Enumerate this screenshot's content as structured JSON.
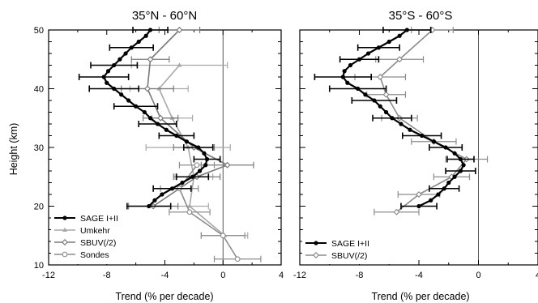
{
  "chart_data": [
    {
      "type": "line",
      "title": "35°N - 60°N",
      "xlabel": "Trend (% per decade)",
      "ylabel": "Height (km)",
      "xlim": [
        -12,
        4
      ],
      "ylim": [
        10,
        50
      ],
      "xticks": [
        "-12",
        "-8",
        "-4",
        "0",
        "4"
      ],
      "yticks": [
        "10",
        "20",
        "30",
        "40",
        "50"
      ],
      "zero_line": true,
      "grid": false,
      "legend_position": "bottom-left",
      "series": [
        {
          "name": "SAGE I+II",
          "color": "#000000",
          "marker": "circle",
          "points": [
            {
              "y": 50,
              "x": -5.0,
              "err": 1.2
            },
            {
              "y": 49,
              "x": -5.3
            },
            {
              "y": 48,
              "x": -5.8
            },
            {
              "y": 47,
              "x": -6.3,
              "err": 1.5
            },
            {
              "y": 46,
              "x": -6.7
            },
            {
              "y": 45,
              "x": -7.1
            },
            {
              "y": 44,
              "x": -7.5,
              "err": 1.6
            },
            {
              "y": 43,
              "x": -7.9
            },
            {
              "y": 42,
              "x": -8.2,
              "err": 1.7
            },
            {
              "y": 41,
              "x": -8.0
            },
            {
              "y": 40,
              "x": -7.5,
              "err": 1.7
            },
            {
              "y": 39,
              "x": -7.0
            },
            {
              "y": 38,
              "x": -6.5
            },
            {
              "y": 37,
              "x": -6.0,
              "err": 1.5
            },
            {
              "y": 36,
              "x": -5.4
            },
            {
              "y": 35,
              "x": -5.0
            },
            {
              "y": 34,
              "x": -4.5,
              "err": 1.3
            },
            {
              "y": 33,
              "x": -3.9
            },
            {
              "y": 32,
              "x": -3.2,
              "err": 1.2
            },
            {
              "y": 31,
              "x": -2.5
            },
            {
              "y": 30,
              "x": -1.7,
              "err": 1.0
            },
            {
              "y": 29,
              "x": -1.3
            },
            {
              "y": 28,
              "x": -1.1,
              "err": 0.9
            },
            {
              "y": 27,
              "x": -1.2
            },
            {
              "y": 26,
              "x": -1.6
            },
            {
              "y": 25,
              "x": -2.1,
              "err": 1.1
            },
            {
              "y": 24,
              "x": -2.8
            },
            {
              "y": 23,
              "x": -3.5,
              "err": 1.3
            },
            {
              "y": 22,
              "x": -4.2
            },
            {
              "y": 21,
              "x": -4.7
            },
            {
              "y": 20,
              "x": -5.1,
              "err": 1.5
            }
          ]
        },
        {
          "name": "Umkehr",
          "color": "#a8a8a8",
          "marker": "triangle",
          "points": [
            {
              "y": 44,
              "x": -3.0,
              "err": 3.3
            },
            {
              "y": 40,
              "x": -4.4,
              "err": 2.0
            },
            {
              "y": 35,
              "x": -3.5,
              "err": 1.4
            },
            {
              "y": 30,
              "x": -2.4,
              "err": 2.9
            },
            {
              "y": 25,
              "x": -2.0,
              "err": 1.3
            },
            {
              "y": 20,
              "x": -2.3,
              "err": 1.3
            },
            {
              "y": 15,
              "x": 0.1,
              "err": 1.6
            }
          ]
        },
        {
          "name": "SBUV(/2)",
          "color": "#7a7a7a",
          "marker": "diamond",
          "points": [
            {
              "y": 50,
              "x": -3.0,
              "err": 1.4
            },
            {
              "y": 45,
              "x": -5.0,
              "err": 1.3
            },
            {
              "y": 40,
              "x": -5.2,
              "err": 1.8
            },
            {
              "y": 35,
              "x": -4.3,
              "err": 1.2
            },
            {
              "y": 30,
              "x": -2.0,
              "err": 1.4
            },
            {
              "y": 27,
              "x": 0.3,
              "err": 1.8
            },
            {
              "y": 25,
              "x": -1.8,
              "err": 1.6
            },
            {
              "y": 20,
              "x": -4.8,
              "err": 1.7
            }
          ]
        },
        {
          "name": "Sondes",
          "color": "#8c8c8c",
          "marker": "circle-open",
          "points": [
            {
              "y": 27,
              "x": -1.8,
              "err": 1.2
            },
            {
              "y": 23,
              "x": -3.0,
              "err": 1.3
            },
            {
              "y": 19,
              "x": -2.3,
              "err": 1.4
            },
            {
              "y": 15,
              "x": 0.0,
              "err": 1.5
            },
            {
              "y": 11,
              "x": 1.0,
              "err": 1.6
            }
          ]
        }
      ]
    },
    {
      "type": "line",
      "title": "35°S - 60°S",
      "xlabel": "Trend (% per decade)",
      "ylabel": "",
      "xlim": [
        -12,
        4
      ],
      "ylim": [
        10,
        50
      ],
      "xticks": [
        "-12",
        "-8",
        "-4",
        "0",
        "4"
      ],
      "yticks": [],
      "zero_line": true,
      "grid": false,
      "legend_position": "bottom-left",
      "series": [
        {
          "name": "SAGE I+II",
          "color": "#000000",
          "marker": "circle",
          "points": [
            {
              "y": 50,
              "x": -4.8,
              "err": 1.6
            },
            {
              "y": 49,
              "x": -5.3
            },
            {
              "y": 48,
              "x": -6.0
            },
            {
              "y": 47,
              "x": -6.7,
              "err": 1.4
            },
            {
              "y": 46,
              "x": -7.4
            },
            {
              "y": 45,
              "x": -8.0,
              "err": 1.3
            },
            {
              "y": 44,
              "x": -8.6
            },
            {
              "y": 43,
              "x": -9.0
            },
            {
              "y": 42,
              "x": -9.1,
              "err": 1.9
            },
            {
              "y": 41,
              "x": -8.8
            },
            {
              "y": 40,
              "x": -8.1,
              "err": 1.9
            },
            {
              "y": 39,
              "x": -7.6
            },
            {
              "y": 38,
              "x": -7.0,
              "err": 1.5
            },
            {
              "y": 37,
              "x": -6.6
            },
            {
              "y": 36,
              "x": -6.2
            },
            {
              "y": 35,
              "x": -5.8,
              "err": 1.3
            },
            {
              "y": 34,
              "x": -5.2
            },
            {
              "y": 33,
              "x": -4.6
            },
            {
              "y": 32,
              "x": -3.8,
              "err": 1.3
            },
            {
              "y": 31,
              "x": -3.0
            },
            {
              "y": 30,
              "x": -2.2,
              "err": 1.1
            },
            {
              "y": 29,
              "x": -1.6
            },
            {
              "y": 28,
              "x": -1.2,
              "err": 0.9
            },
            {
              "y": 27,
              "x": -1.0
            },
            {
              "y": 26,
              "x": -1.2,
              "err": 1.0
            },
            {
              "y": 25,
              "x": -1.6
            },
            {
              "y": 24,
              "x": -2.0
            },
            {
              "y": 23,
              "x": -2.3,
              "err": 1.0
            },
            {
              "y": 22,
              "x": -2.7
            },
            {
              "y": 21,
              "x": -3.2
            },
            {
              "y": 20,
              "x": -4.0,
              "err": 1.2
            }
          ]
        },
        {
          "name": "SBUV(/2)",
          "color": "#8c8c8c",
          "marker": "diamond",
          "points": [
            {
              "y": 50,
              "x": -3.1,
              "err": 1.4
            },
            {
              "y": 45,
              "x": -5.3,
              "err": 1.6
            },
            {
              "y": 42,
              "x": -6.6,
              "err": 1.7
            },
            {
              "y": 39,
              "x": -6.2,
              "err": 1.3
            },
            {
              "y": 35,
              "x": -5.3,
              "err": 1.2
            },
            {
              "y": 31,
              "x": -3.0,
              "err": 1.5
            },
            {
              "y": 28,
              "x": -0.8,
              "err": 1.4
            },
            {
              "y": 25,
              "x": -1.8,
              "err": 1.2
            },
            {
              "y": 22,
              "x": -4.0,
              "err": 1.4
            },
            {
              "y": 19,
              "x": -5.5,
              "err": 1.5
            }
          ]
        }
      ]
    }
  ]
}
